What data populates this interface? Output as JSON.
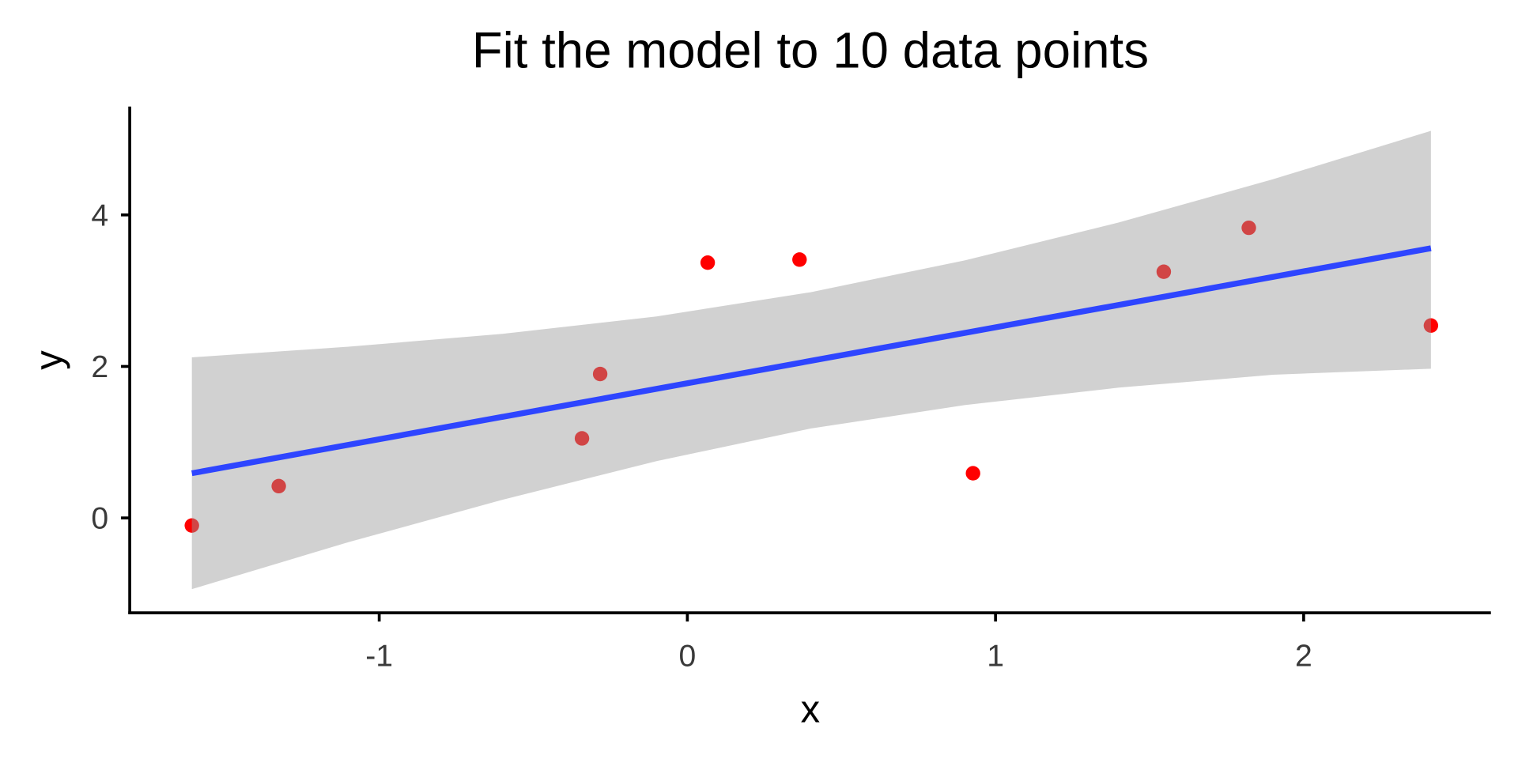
{
  "chart_data": {
    "type": "scatter",
    "title": "Fit the model to 10 data points",
    "xlabel": "x",
    "ylabel": "y",
    "xlim": [
      -1.8,
      2.6
    ],
    "ylim": [
      -1.25,
      5.4
    ],
    "x_ticks": [
      -1,
      0,
      1,
      2
    ],
    "x_tick_labels": [
      "-1",
      "0",
      "1",
      "2"
    ],
    "y_ticks": [
      0,
      2,
      4
    ],
    "y_tick_labels": [
      "0",
      "2",
      "4"
    ],
    "grid": false,
    "points": {
      "x": [
        -1.608,
        -1.326,
        -0.342,
        -0.283,
        0.066,
        0.364,
        0.927,
        1.546,
        1.822,
        2.413
      ],
      "y": [
        -0.1,
        0.42,
        1.05,
        1.9,
        3.37,
        3.41,
        0.59,
        3.25,
        3.83,
        2.54
      ],
      "color": "#ff0000"
    },
    "fit_line": {
      "x": [
        -1.608,
        2.413
      ],
      "y": [
        0.59,
        3.56
      ],
      "color": "#2e45ff"
    },
    "confidence_band": {
      "x": [
        -1.608,
        -1.1,
        -0.6,
        -0.1,
        0.4,
        0.9,
        1.4,
        1.9,
        2.413
      ],
      "ymin": [
        -0.94,
        -0.32,
        0.24,
        0.75,
        1.18,
        1.49,
        1.72,
        1.89,
        1.97
      ],
      "ymax": [
        2.12,
        2.26,
        2.43,
        2.66,
        2.98,
        3.4,
        3.9,
        4.47,
        5.11
      ],
      "color": "#999999"
    }
  }
}
